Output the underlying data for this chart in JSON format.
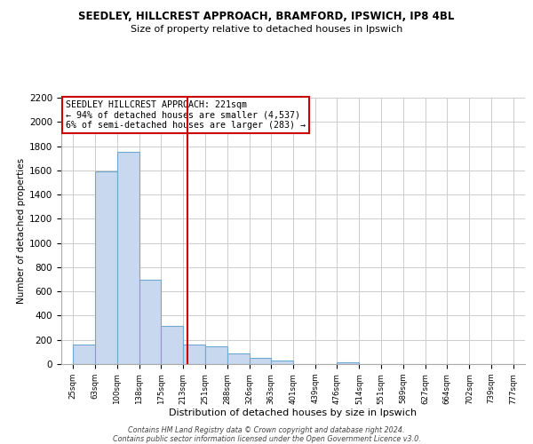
{
  "title": "SEEDLEY, HILLCREST APPROACH, BRAMFORD, IPSWICH, IP8 4BL",
  "subtitle": "Size of property relative to detached houses in Ipswich",
  "xlabel": "Distribution of detached houses by size in Ipswich",
  "ylabel": "Number of detached properties",
  "bar_color": "#c8d8ee",
  "bar_edge_color": "#6fa8d0",
  "bar_left_edges": [
    25,
    63,
    100,
    138,
    175,
    213,
    251,
    288,
    326,
    363,
    401,
    439,
    476,
    514,
    551,
    589,
    627,
    664,
    702,
    739
  ],
  "bar_widths": [
    38,
    37,
    38,
    37,
    38,
    38,
    37,
    38,
    37,
    38,
    38,
    37,
    38,
    37,
    38,
    38,
    37,
    38,
    37,
    38
  ],
  "bar_heights": [
    160,
    1590,
    1750,
    700,
    315,
    160,
    150,
    85,
    50,
    30,
    0,
    0,
    15,
    0,
    0,
    0,
    0,
    0,
    0,
    0
  ],
  "tick_labels": [
    "25sqm",
    "63sqm",
    "100sqm",
    "138sqm",
    "175sqm",
    "213sqm",
    "251sqm",
    "288sqm",
    "326sqm",
    "363sqm",
    "401sqm",
    "439sqm",
    "476sqm",
    "514sqm",
    "551sqm",
    "589sqm",
    "627sqm",
    "664sqm",
    "702sqm",
    "739sqm",
    "777sqm"
  ],
  "tick_positions": [
    25,
    63,
    100,
    138,
    175,
    213,
    251,
    288,
    326,
    363,
    401,
    439,
    476,
    514,
    551,
    589,
    627,
    664,
    702,
    739,
    777
  ],
  "ylim": [
    0,
    2200
  ],
  "yticks": [
    0,
    200,
    400,
    600,
    800,
    1000,
    1200,
    1400,
    1600,
    1800,
    2000,
    2200
  ],
  "vline_x": 221,
  "vline_color": "#cc0000",
  "annotation_text": "SEEDLEY HILLCREST APPROACH: 221sqm\n← 94% of detached houses are smaller (4,537)\n6% of semi-detached houses are larger (283) →",
  "annotation_box_color": "#ffffff",
  "annotation_box_edge_color": "#cc0000",
  "footnote1": "Contains HM Land Registry data © Crown copyright and database right 2024.",
  "footnote2": "Contains public sector information licensed under the Open Government Licence v3.0.",
  "bg_color": "#ffffff",
  "grid_color": "#cccccc",
  "xlim_left": 5,
  "xlim_right": 797
}
